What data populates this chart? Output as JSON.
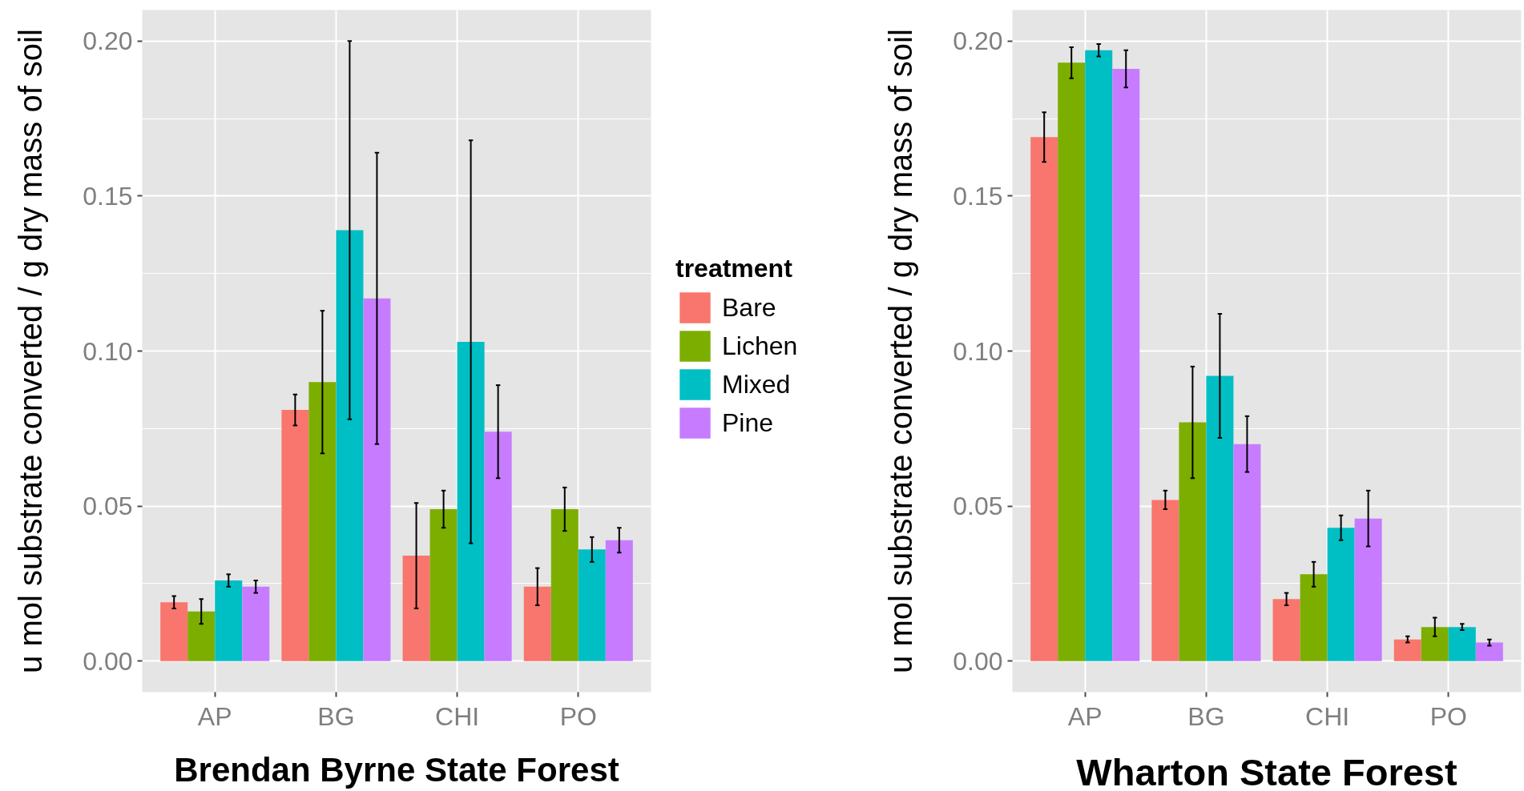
{
  "chart_data": [
    {
      "type": "bar",
      "xlabel": "Brendan Byrne State Forest",
      "ylabel": "u mol substrate converted / g dry mass of soil",
      "categories": [
        "AP",
        "BG",
        "CHI",
        "PO"
      ],
      "series": [
        {
          "name": "Bare",
          "color": "#f8766d",
          "values": [
            0.019,
            0.081,
            0.034,
            0.024
          ],
          "errors": [
            0.002,
            0.005,
            0.017,
            0.006
          ]
        },
        {
          "name": "Lichen",
          "color": "#7cae00",
          "values": [
            0.016,
            0.09,
            0.049,
            0.049
          ],
          "errors": [
            0.004,
            0.023,
            0.006,
            0.007
          ]
        },
        {
          "name": "Mixed",
          "color": "#00bfc4",
          "values": [
            0.026,
            0.139,
            0.103,
            0.036
          ],
          "errors": [
            0.002,
            0.061,
            0.065,
            0.004
          ]
        },
        {
          "name": "Pine",
          "color": "#c77cff",
          "values": [
            0.024,
            0.117,
            0.074,
            0.039
          ],
          "errors": [
            0.002,
            0.047,
            0.015,
            0.004
          ]
        }
      ],
      "ylim": [
        -0.01,
        0.21
      ],
      "yticks": [
        {
          "value": 0,
          "label": "0.00"
        },
        {
          "value": 0.05,
          "label": "0.05"
        },
        {
          "value": 0.1,
          "label": "0.10"
        },
        {
          "value": 0.15,
          "label": "0.15"
        },
        {
          "value": 0.2,
          "label": "0.20"
        }
      ],
      "grid": true,
      "legend": "right",
      "legend_title": "treatment"
    },
    {
      "type": "bar",
      "xlabel": "Wharton State Forest",
      "ylabel": "u mol substrate converted / g dry mass of soil",
      "categories": [
        "AP",
        "BG",
        "CHI",
        "PO"
      ],
      "series": [
        {
          "color": "#f8766d",
          "values": [
            0.169,
            0.052,
            0.02,
            0.007
          ],
          "errors": [
            0.008,
            0.003,
            0.002,
            0.001
          ]
        },
        {
          "color": "#7cae00",
          "values": [
            0.193,
            0.077,
            0.028,
            0.011
          ],
          "errors": [
            0.005,
            0.018,
            0.004,
            0.003
          ]
        },
        {
          "color": "#00bfc4",
          "values": [
            0.197,
            0.092,
            0.043,
            0.011
          ],
          "errors": [
            0.002,
            0.02,
            0.004,
            0.001
          ]
        },
        {
          "color": "#c77cff",
          "values": [
            0.191,
            0.07,
            0.046,
            0.006
          ],
          "errors": [
            0.006,
            0.009,
            0.009,
            0.001
          ]
        }
      ],
      "ylim": [
        -0.01,
        0.21
      ],
      "yticks": [
        {
          "value": 0,
          "label": "0.00"
        },
        {
          "value": 0.05,
          "label": "0.05"
        },
        {
          "value": 0.1,
          "label": "0.10"
        },
        {
          "value": 0.15,
          "label": "0.15"
        },
        {
          "value": 0.2,
          "label": "0.20"
        }
      ],
      "grid": true
    }
  ]
}
